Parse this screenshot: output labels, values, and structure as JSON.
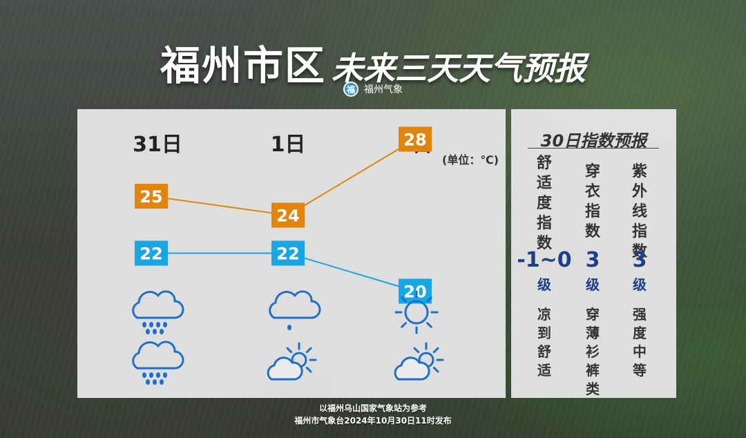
{
  "title": {
    "main": "福州市区",
    "sub": "未来三天天气预报"
  },
  "brand": {
    "logo_char": "福",
    "name": "福州气象"
  },
  "unit_label": "(单位：℃)",
  "chart_data": {
    "type": "line",
    "categories": [
      "31日",
      "1日",
      "2日"
    ],
    "series": [
      {
        "values": [
          25,
          24,
          28
        ],
        "color": "#e2830c"
      },
      {
        "values": [
          22,
          22,
          20
        ],
        "color": "#17a7e4"
      }
    ]
  },
  "weather_icons": {
    "day": [
      "rain-cloud",
      "light-rain-cloud",
      "sun"
    ],
    "night": [
      "rain-cloud",
      "partly-cloudy",
      "partly-cloudy"
    ]
  },
  "index_panel": {
    "title": "30日指数预报",
    "columns": [
      {
        "name": "舒适度指数",
        "value": "-1~0",
        "level": "级",
        "desc": "凉到舒适"
      },
      {
        "name": "穿衣指数",
        "value": "3",
        "level": "级",
        "desc": "穿薄衫裤类"
      },
      {
        "name": "紫外线指数",
        "value": "3",
        "level": "级",
        "desc": "强度中等"
      }
    ]
  },
  "footer": {
    "line1": "以福州乌山国家气象站为参考",
    "line2": "福州市气象台2024年10月30日11时发布"
  }
}
